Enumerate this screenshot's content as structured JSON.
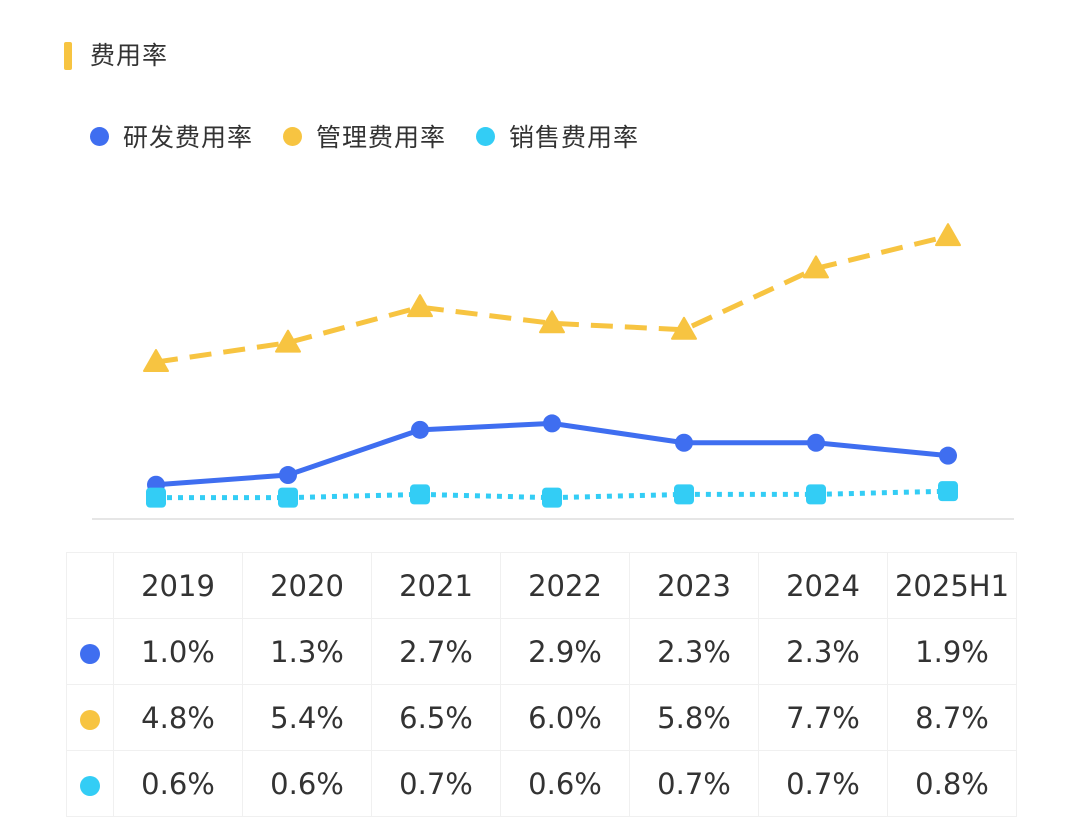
{
  "title": "费用率",
  "colors": {
    "accent": "#f7c441",
    "rd": "#3f6ef0",
    "admin": "#f7c441",
    "sales": "#33cdf5",
    "baseline": "#e6e6e6"
  },
  "legend": [
    {
      "label": "研发费用率",
      "color": "#3f6ef0"
    },
    {
      "label": "管理费用率",
      "color": "#f7c441"
    },
    {
      "label": "销售费用率",
      "color": "#33cdf5"
    }
  ],
  "chart_data": {
    "type": "line",
    "title": "费用率",
    "xlabel": "",
    "ylabel": "",
    "categories": [
      "2019",
      "2020",
      "2021",
      "2022",
      "2023",
      "2024",
      "2025H1"
    ],
    "ylim": [
      0,
      9.2
    ],
    "grid": false,
    "legend_position": "top-left",
    "series": [
      {
        "name": "研发费用率",
        "values": [
          1.0,
          1.3,
          2.7,
          2.9,
          2.3,
          2.3,
          1.9
        ],
        "color": "#3f6ef0",
        "line_style": "solid",
        "marker": "circle"
      },
      {
        "name": "管理费用率",
        "values": [
          4.8,
          5.4,
          6.5,
          6.0,
          5.8,
          7.7,
          8.7
        ],
        "color": "#f7c441",
        "line_style": "dashed",
        "marker": "triangle"
      },
      {
        "name": "销售费用率",
        "values": [
          0.6,
          0.6,
          0.7,
          0.6,
          0.7,
          0.7,
          0.8
        ],
        "color": "#33cdf5",
        "line_style": "dotted",
        "marker": "square"
      }
    ]
  },
  "table": {
    "headers": [
      "",
      "2019",
      "2020",
      "2021",
      "2022",
      "2023",
      "2024",
      "2025H1"
    ],
    "rows": [
      {
        "series": "研发费用率",
        "color": "#3f6ef0",
        "cells": [
          "1.0%",
          "1.3%",
          "2.7%",
          "2.9%",
          "2.3%",
          "2.3%",
          "1.9%"
        ]
      },
      {
        "series": "管理费用率",
        "color": "#f7c441",
        "cells": [
          "4.8%",
          "5.4%",
          "6.5%",
          "6.0%",
          "5.8%",
          "7.7%",
          "8.7%"
        ]
      },
      {
        "series": "销售费用率",
        "color": "#33cdf5",
        "cells": [
          "0.6%",
          "0.6%",
          "0.7%",
          "0.6%",
          "0.7%",
          "0.7%",
          "0.8%"
        ]
      }
    ]
  }
}
